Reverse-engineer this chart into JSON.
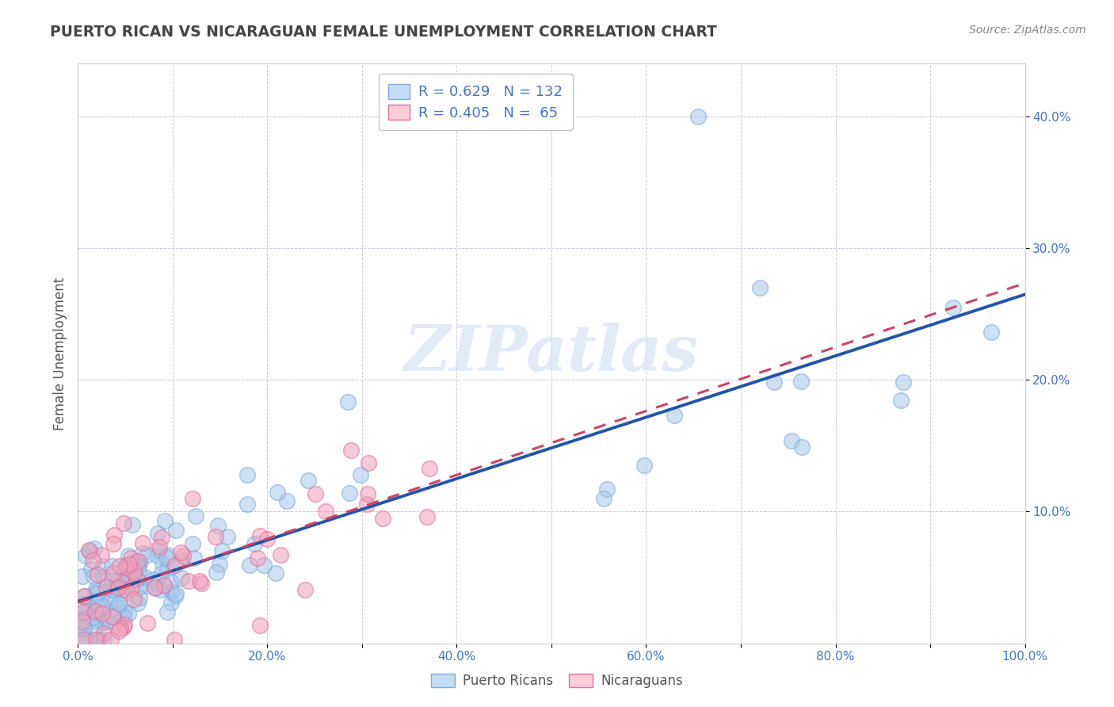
{
  "title": "PUERTO RICAN VS NICARAGUAN FEMALE UNEMPLOYMENT CORRELATION CHART",
  "source_text": "Source: ZipAtlas.com",
  "ylabel": "Female Unemployment",
  "xlim": [
    0.0,
    1.0
  ],
  "ylim": [
    0.0,
    0.44
  ],
  "xtick_labels": [
    "0.0%",
    "",
    "20.0%",
    "",
    "40.0%",
    "",
    "60.0%",
    "",
    "80.0%",
    "",
    "100.0%"
  ],
  "xtick_vals": [
    0.0,
    0.1,
    0.2,
    0.3,
    0.4,
    0.5,
    0.6,
    0.7,
    0.8,
    0.9,
    1.0
  ],
  "ytick_labels": [
    "10.0%",
    "20.0%",
    "30.0%",
    "40.0%"
  ],
  "ytick_vals": [
    0.1,
    0.2,
    0.3,
    0.4
  ],
  "watermark": "ZIPatlas",
  "pr_color": "#a8c8e8",
  "nic_color": "#f0a0b8",
  "pr_line_color": "#2255aa",
  "nic_line_color": "#cc4466",
  "grid_color": "#ccccdd",
  "background_color": "#ffffff",
  "title_color": "#444444",
  "source_color": "#888888",
  "axis_label_color": "#4472c4",
  "pr_label": "Puerto Ricans",
  "nic_label": "Nicaraguans",
  "legend_color": "#4472c4"
}
